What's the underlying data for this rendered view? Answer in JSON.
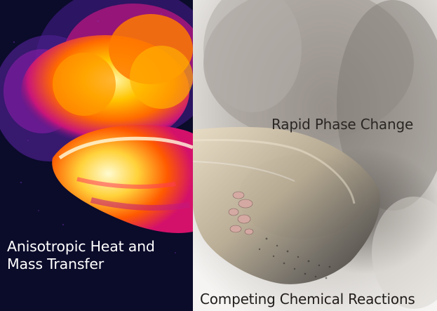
{
  "panels": {
    "left": {
      "label_line1": "Anisotropic Heat and",
      "label_line2": "Mass Transfer"
    },
    "right": {
      "label_top": "Rapid Phase Change",
      "label_bottom": "Competing Chemical Reactions"
    }
  },
  "colors": {
    "thermal_background": "#0b0b2a",
    "thermal_hot": "#ffcc00",
    "thermal_mid": "#ff4400",
    "thermal_cool": "#6a1fa0",
    "smoke": "#a9a39b",
    "particle": "#c9b79a"
  }
}
